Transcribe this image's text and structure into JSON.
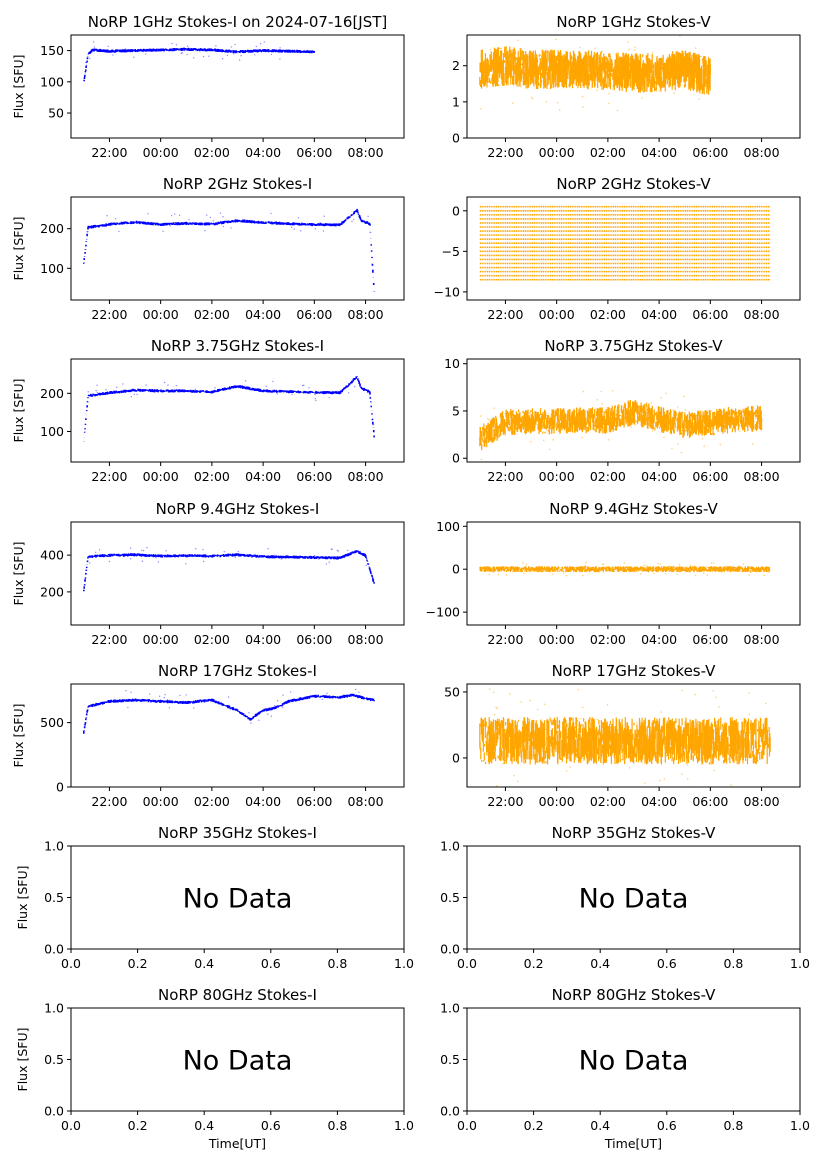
{
  "figure": {
    "x_time_label": "Time[UT]",
    "y_flux_label": "Flux [SFU]"
  },
  "chart_data": [
    {
      "type": "scatter",
      "title": "NoRP 1GHz Stokes-I on 2024-07-16[JST]",
      "xlabel": "",
      "ylabel": "Flux [SFU]",
      "xlim": [
        "20:30",
        "09:30"
      ],
      "ylim": [
        10,
        175
      ],
      "xticks": [
        "22:00",
        "00:00",
        "02:00",
        "04:00",
        "06:00",
        "08:00"
      ],
      "yticks": [
        "50",
        "100",
        "150"
      ],
      "color": "#0000ff",
      "x": [
        "21:00",
        "21:10",
        "21:20",
        "22:00",
        "23:00",
        "00:00",
        "01:00",
        "02:00",
        "03:00",
        "04:00",
        "05:00",
        "06:00"
      ],
      "y": [
        100,
        145,
        152,
        150,
        151,
        152,
        153,
        152,
        149,
        151,
        150,
        149
      ]
    },
    {
      "type": "scatter",
      "title": "NoRP 1GHz Stokes-V",
      "xlabel": "",
      "ylabel": "",
      "xlim": [
        "20:30",
        "09:30"
      ],
      "ylim": [
        0,
        2.85
      ],
      "xticks": [
        "22:00",
        "00:00",
        "02:00",
        "04:00",
        "06:00",
        "08:00"
      ],
      "yticks": [
        "0",
        "1",
        "2"
      ],
      "color": "#ffa500",
      "x": [
        "21:00",
        "22:00",
        "23:00",
        "00:00",
        "01:00",
        "02:00",
        "03:00",
        "04:00",
        "05:00",
        "06:00"
      ],
      "y": [
        1.9,
        2.0,
        1.9,
        1.9,
        1.9,
        1.85,
        1.8,
        1.8,
        1.9,
        1.7
      ]
    },
    {
      "type": "scatter",
      "title": "NoRP 2GHz Stokes-I",
      "xlabel": "",
      "ylabel": "Flux [SFU]",
      "xlim": [
        "20:30",
        "09:30"
      ],
      "ylim": [
        20,
        280
      ],
      "xticks": [
        "22:00",
        "00:00",
        "02:00",
        "04:00",
        "06:00",
        "08:00"
      ],
      "yticks": [
        "100",
        "200"
      ],
      "color": "#0000ff",
      "x": [
        "21:00",
        "21:10",
        "22:00",
        "23:00",
        "00:00",
        "01:00",
        "02:00",
        "03:00",
        "04:00",
        "05:00",
        "06:00",
        "07:00",
        "07:40",
        "07:50",
        "08:10",
        "08:20"
      ],
      "y": [
        115,
        205,
        212,
        218,
        212,
        215,
        213,
        222,
        217,
        214,
        212,
        211,
        248,
        222,
        214,
        45
      ]
    },
    {
      "type": "scatter",
      "title": "NoRP 2GHz Stokes-V",
      "xlabel": "",
      "ylabel": "",
      "xlim": [
        "20:30",
        "09:30"
      ],
      "ylim": [
        -11,
        1.7
      ],
      "xticks": [
        "22:00",
        "00:00",
        "02:00",
        "04:00",
        "06:00",
        "08:00"
      ],
      "yticks": [
        "-10",
        "-5",
        "0"
      ],
      "color": "#ffa500",
      "x": [
        "21:00",
        "08:20"
      ],
      "y": [
        -4.0,
        -4.0
      ]
    },
    {
      "type": "scatter",
      "title": "NoRP 3.75GHz Stokes-I",
      "xlabel": "",
      "ylabel": "Flux [SFU]",
      "xlim": [
        "20:30",
        "09:30"
      ],
      "ylim": [
        20,
        290
      ],
      "xticks": [
        "22:00",
        "00:00",
        "02:00",
        "04:00",
        "06:00",
        "08:00"
      ],
      "yticks": [
        "100",
        "200"
      ],
      "color": "#0000ff",
      "x": [
        "21:00",
        "21:10",
        "22:00",
        "23:00",
        "00:00",
        "01:00",
        "02:00",
        "03:00",
        "04:00",
        "05:00",
        "06:00",
        "07:00",
        "07:40",
        "07:50",
        "08:10",
        "08:20"
      ],
      "y": [
        75,
        195,
        203,
        210,
        208,
        208,
        205,
        220,
        208,
        206,
        204,
        203,
        245,
        215,
        205,
        90
      ]
    },
    {
      "type": "scatter",
      "title": "NoRP 3.75GHz Stokes-V",
      "xlabel": "",
      "ylabel": "",
      "xlim": [
        "20:30",
        "09:30"
      ],
      "ylim": [
        -0.4,
        10.5
      ],
      "xticks": [
        "22:00",
        "00:00",
        "02:00",
        "04:00",
        "06:00",
        "08:00"
      ],
      "yticks": [
        "0",
        "5",
        "10"
      ],
      "color": "#ffa500",
      "x": [
        "21:00",
        "22:00",
        "23:00",
        "00:00",
        "01:00",
        "02:00",
        "03:00",
        "04:00",
        "05:00",
        "06:00",
        "07:00",
        "08:00"
      ],
      "y": [
        2.0,
        3.8,
        3.9,
        3.9,
        4.0,
        4.0,
        4.9,
        4.1,
        3.5,
        3.8,
        4.1,
        4.2
      ]
    },
    {
      "type": "scatter",
      "title": "NoRP 9.4GHz Stokes-I",
      "xlabel": "",
      "ylabel": "Flux [SFU]",
      "xlim": [
        "20:30",
        "09:30"
      ],
      "ylim": [
        20,
        580
      ],
      "xticks": [
        "22:00",
        "00:00",
        "02:00",
        "04:00",
        "06:00",
        "08:00"
      ],
      "yticks": [
        "200",
        "400"
      ],
      "color": "#0000ff",
      "x": [
        "21:00",
        "21:10",
        "22:00",
        "23:00",
        "00:00",
        "01:00",
        "02:00",
        "03:00",
        "04:00",
        "05:00",
        "06:00",
        "07:00",
        "07:40",
        "08:00",
        "08:20"
      ],
      "y": [
        210,
        395,
        402,
        405,
        398,
        400,
        398,
        405,
        395,
        393,
        390,
        388,
        425,
        400,
        250
      ]
    },
    {
      "type": "scatter",
      "title": "NoRP 9.4GHz Stokes-V",
      "xlabel": "",
      "ylabel": "",
      "xlim": [
        "20:30",
        "09:30"
      ],
      "ylim": [
        -130,
        110
      ],
      "xticks": [
        "22:00",
        "00:00",
        "02:00",
        "04:00",
        "06:00",
        "08:00"
      ],
      "yticks": [
        "-100",
        "0",
        "100"
      ],
      "color": "#ffa500",
      "x": [
        "21:00",
        "08:20"
      ],
      "y": [
        0,
        0
      ]
    },
    {
      "type": "scatter",
      "title": "NoRP 17GHz Stokes-I",
      "xlabel": "",
      "ylabel": "Flux [SFU]",
      "xlim": [
        "20:30",
        "09:30"
      ],
      "ylim": [
        0,
        800
      ],
      "xticks": [
        "22:00",
        "00:00",
        "02:00",
        "04:00",
        "06:00",
        "08:00"
      ],
      "yticks": [
        "0",
        "500"
      ],
      "color": "#0000ff",
      "x": [
        "21:00",
        "21:10",
        "22:00",
        "23:00",
        "00:00",
        "01:00",
        "02:00",
        "03:00",
        "03:30",
        "04:00",
        "04:30",
        "05:00",
        "06:00",
        "07:00",
        "07:30",
        "08:00",
        "08:20"
      ],
      "y": [
        430,
        630,
        670,
        680,
        670,
        660,
        680,
        600,
        530,
        600,
        620,
        670,
        710,
        700,
        720,
        690,
        680
      ]
    },
    {
      "type": "scatter",
      "title": "NoRP 17GHz Stokes-V",
      "xlabel": "",
      "ylabel": "",
      "xlim": [
        "20:30",
        "09:30"
      ],
      "ylim": [
        -22,
        56
      ],
      "xticks": [
        "22:00",
        "00:00",
        "02:00",
        "04:00",
        "06:00",
        "08:00"
      ],
      "yticks": [
        "0",
        "50"
      ],
      "color": "#ffa500",
      "x": [
        "21:00",
        "08:20"
      ],
      "y": [
        13,
        13
      ]
    },
    {
      "type": "scatter",
      "title": "NoRP 35GHz Stokes-I",
      "xlabel": "",
      "ylabel": "Flux [SFU]",
      "xlim": [
        0,
        1
      ],
      "ylim": [
        0,
        1
      ],
      "xticks": [
        "0.0",
        "0.2",
        "0.4",
        "0.6",
        "0.8",
        "1.0"
      ],
      "yticks": [
        "0.0",
        "0.5",
        "1.0"
      ],
      "annotation": "No Data",
      "x": [],
      "y": []
    },
    {
      "type": "scatter",
      "title": "NoRP 35GHz Stokes-V",
      "xlabel": "",
      "ylabel": "",
      "xlim": [
        0,
        1
      ],
      "ylim": [
        0,
        1
      ],
      "xticks": [
        "0.0",
        "0.2",
        "0.4",
        "0.6",
        "0.8",
        "1.0"
      ],
      "yticks": [
        "0.0",
        "0.5",
        "1.0"
      ],
      "annotation": "No Data",
      "x": [],
      "y": []
    },
    {
      "type": "scatter",
      "title": "NoRP 80GHz Stokes-I",
      "xlabel": "Time[UT]",
      "ylabel": "Flux [SFU]",
      "xlim": [
        0,
        1
      ],
      "ylim": [
        0,
        1
      ],
      "xticks": [
        "0.0",
        "0.2",
        "0.4",
        "0.6",
        "0.8",
        "1.0"
      ],
      "yticks": [
        "0.0",
        "0.5",
        "1.0"
      ],
      "annotation": "No Data",
      "x": [],
      "y": []
    },
    {
      "type": "scatter",
      "title": "NoRP 80GHz Stokes-V",
      "xlabel": "Time[UT]",
      "ylabel": "",
      "xlim": [
        0,
        1
      ],
      "ylim": [
        0,
        1
      ],
      "xticks": [
        "0.0",
        "0.2",
        "0.4",
        "0.6",
        "0.8",
        "1.0"
      ],
      "yticks": [
        "0.0",
        "0.5",
        "1.0"
      ],
      "annotation": "No Data",
      "x": [],
      "y": []
    }
  ]
}
